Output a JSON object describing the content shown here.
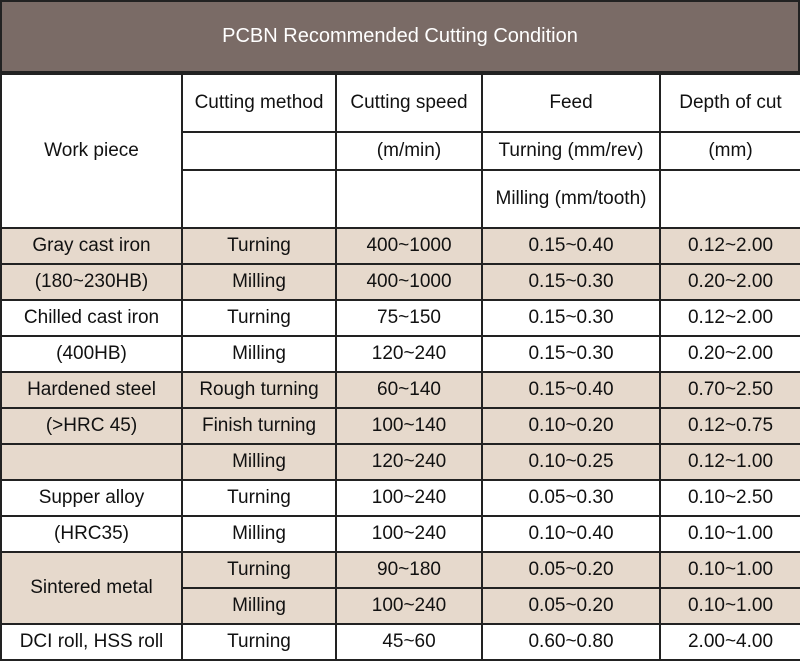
{
  "title": "PCBN Recommended Cutting Condition",
  "headers": {
    "work_piece": "Work piece",
    "cutting_method": "Cutting method",
    "cutting_speed": "Cutting speed",
    "feed": "Feed",
    "depth_of_cut": "Depth of cut",
    "speed_unit": "(m/min)",
    "feed_turning_unit": "Turning (mm/rev)",
    "depth_unit": "(mm)",
    "feed_milling_unit": "Milling (mm/tooth)"
  },
  "rows": [
    {
      "work_piece": "Gray cast iron",
      "method": "Turning",
      "speed": "400~1000",
      "feed": "0.15~0.40",
      "depth": "0.12~2.00"
    },
    {
      "work_piece": "(180~230HB)",
      "method": "Milling",
      "speed": "400~1000",
      "feed": "0.15~0.30",
      "depth": "0.20~2.00"
    },
    {
      "work_piece": "Chilled cast iron",
      "method": "Turning",
      "speed": "75~150",
      "feed": "0.15~0.30",
      "depth": "0.12~2.00"
    },
    {
      "work_piece": "(400HB)",
      "method": "Milling",
      "speed": "120~240",
      "feed": "0.15~0.30",
      "depth": "0.20~2.00"
    },
    {
      "work_piece": "Hardened steel",
      "method": "Rough turning",
      "speed": "60~140",
      "feed": "0.15~0.40",
      "depth": "0.70~2.50"
    },
    {
      "work_piece": "(>HRC 45)",
      "method": "Finish turning",
      "speed": "100~140",
      "feed": "0.10~0.20",
      "depth": "0.12~0.75"
    },
    {
      "work_piece": "",
      "method": "Milling",
      "speed": "120~240",
      "feed": "0.10~0.25",
      "depth": "0.12~1.00"
    },
    {
      "work_piece": "Supper alloy",
      "method": "Turning",
      "speed": "100~240",
      "feed": "0.05~0.30",
      "depth": "0.10~2.50"
    },
    {
      "work_piece": "(HRC35)",
      "method": "Milling",
      "speed": "100~240",
      "feed": "0.10~0.40",
      "depth": "0.10~1.00"
    },
    {
      "work_piece": "Sintered metal",
      "method": "Turning",
      "speed": "90~180",
      "feed": "0.05~0.20",
      "depth": "0.10~1.00"
    },
    {
      "work_piece": "",
      "method": "Milling",
      "speed": "100~240",
      "feed": "0.05~0.20",
      "depth": "0.10~1.00"
    },
    {
      "work_piece": "DCI roll, HSS roll",
      "method": "Turning",
      "speed": "45~60",
      "feed": "0.60~0.80",
      "depth": "2.00~4.00"
    }
  ]
}
